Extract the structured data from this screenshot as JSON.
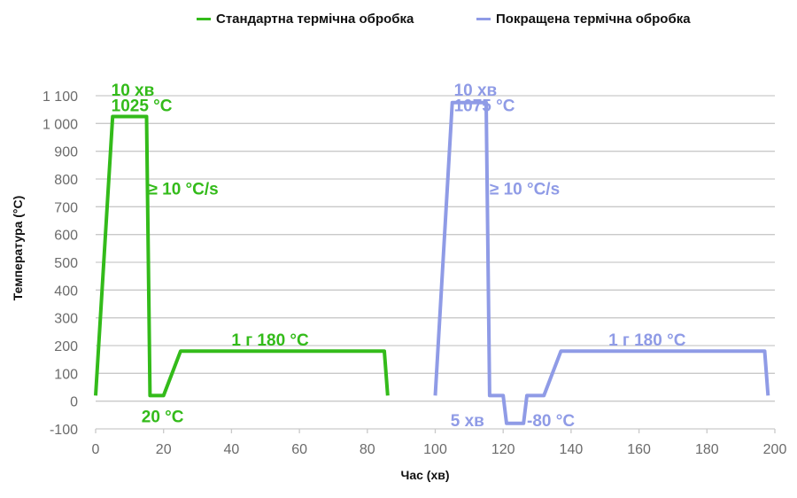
{
  "chart_data": {
    "type": "line",
    "xlabel": "Час (хв)",
    "ylabel": "Температура (°C)",
    "xlim": [
      0,
      200
    ],
    "ylim": [
      -100,
      1100
    ],
    "x_ticks": [
      0,
      20,
      40,
      60,
      80,
      100,
      120,
      140,
      160,
      180,
      200
    ],
    "y_ticks": [
      -100,
      0,
      100,
      200,
      300,
      400,
      500,
      600,
      700,
      800,
      900,
      1000,
      1100
    ],
    "x_tick_labels": [
      "0",
      "20",
      "40",
      "60",
      "80",
      "100",
      "120",
      "140",
      "160",
      "180",
      "200"
    ],
    "y_tick_labels": [
      "-100",
      "0",
      "100",
      "200",
      "300",
      "400",
      "500",
      "600",
      "700",
      "800",
      "900",
      "1 000",
      "1 100"
    ],
    "grid": "horizontal",
    "legend_position": "top",
    "series": [
      {
        "name": "Стандартна термічна обробка",
        "color": "#33bb1a",
        "points": [
          [
            0,
            20
          ],
          [
            5,
            1025
          ],
          [
            15,
            1025
          ],
          [
            16,
            20
          ],
          [
            20,
            20
          ],
          [
            25,
            180
          ],
          [
            85,
            180
          ],
          [
            86,
            20
          ]
        ]
      },
      {
        "name": "Покращена термічна обробка",
        "color": "#8f9be6",
        "points": [
          [
            100,
            20
          ],
          [
            105,
            1075
          ],
          [
            115,
            1075
          ],
          [
            116,
            20
          ],
          [
            120,
            20
          ],
          [
            121,
            -80
          ],
          [
            126,
            -80
          ],
          [
            127,
            20
          ],
          [
            132,
            20
          ],
          [
            137,
            180
          ],
          [
            197,
            180
          ],
          [
            198,
            20
          ]
        ]
      }
    ],
    "annotations": [
      {
        "id": "std-time",
        "series": 0,
        "text": "10 хв",
        "x": 4.6,
        "y": 1125
      },
      {
        "id": "std-temp",
        "series": 0,
        "text": "1025 °C",
        "x": 4.6,
        "y": 1070
      },
      {
        "id": "std-rate",
        "series": 0,
        "text": "≥ 10 °C/s",
        "x": 15.5,
        "y": 770
      },
      {
        "id": "std-quench",
        "series": 0,
        "text": "20 °C",
        "x": 13.5,
        "y": -50
      },
      {
        "id": "std-temper",
        "series": 0,
        "text": "1 г  180 °C",
        "x": 40,
        "y": 225
      },
      {
        "id": "imp-time",
        "series": 1,
        "text": "10 хв",
        "x": 105.5,
        "y": 1125
      },
      {
        "id": "imp-temp",
        "series": 1,
        "text": "1075 °C",
        "x": 105.5,
        "y": 1070
      },
      {
        "id": "imp-rate",
        "series": 1,
        "text": "≥ 10 °C/s",
        "x": 116,
        "y": 770
      },
      {
        "id": "imp-cold-time",
        "series": 1,
        "text": "5 хв",
        "x": 104.5,
        "y": -65
      },
      {
        "id": "imp-cold-temp",
        "series": 1,
        "text": "-80 °C",
        "x": 127,
        "y": -65
      },
      {
        "id": "imp-temper",
        "series": 1,
        "text": "1 г  180 °C",
        "x": 151,
        "y": 225
      }
    ]
  }
}
